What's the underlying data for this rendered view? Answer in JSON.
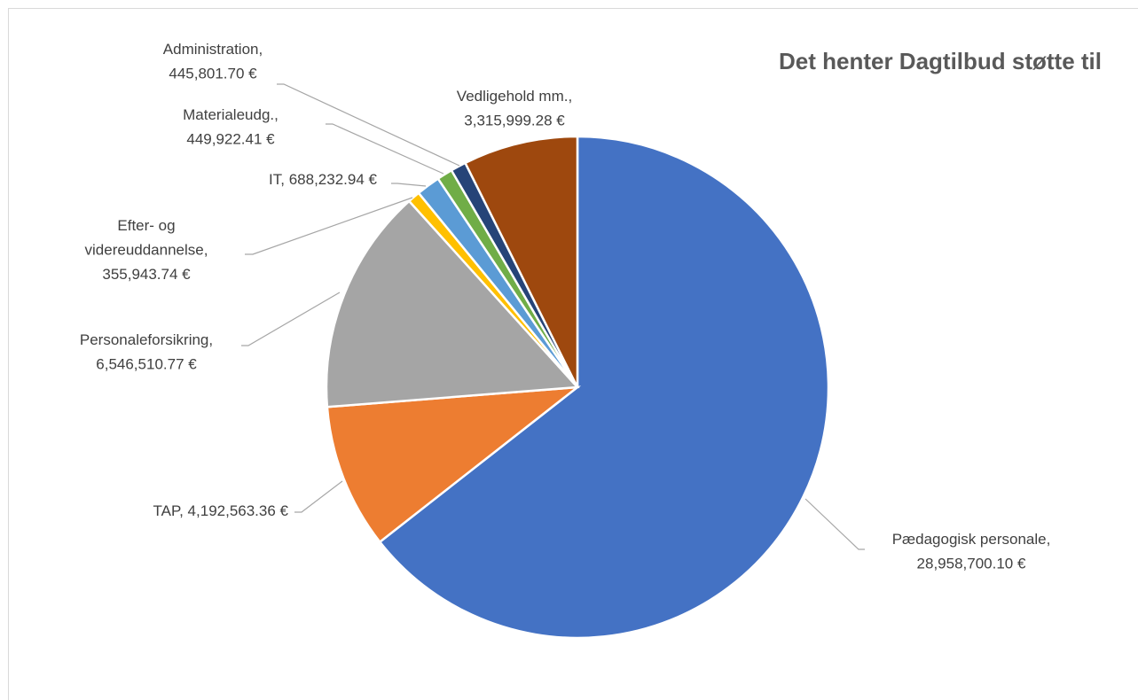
{
  "chart_data": {
    "type": "pie",
    "title": "Det henter Dagtilbud støtte til",
    "values": [
      28958700.1,
      4192563.36,
      6546510.77,
      355943.74,
      688232.94,
      449922.41,
      445801.7,
      3315999.28
    ],
    "value_labels": [
      "Pædagogisk personale,\n28,958,700.10 €",
      "TAP, 4,192,563.36 €",
      "Personaleforsikring,\n6,546,510.77 €",
      "Efter- og\nvidereuddannelse,\n355,943.74 €",
      "IT, 688,232.94 €",
      "Materialeudg.,\n449,922.41 €",
      "Administration,\n445,801.70 €",
      "Vedligehold mm.,\n3,315,999.28 €"
    ],
    "colors": [
      "#4472c4",
      "#ed7d31",
      "#a5a5a5",
      "#ffc000",
      "#5b9bd5",
      "#70ad47",
      "#264478",
      "#9e480e"
    ]
  }
}
